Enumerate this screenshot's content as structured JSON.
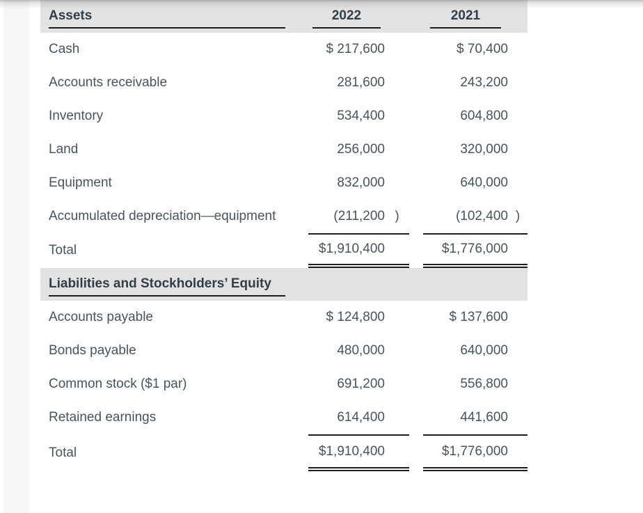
{
  "colors": {
    "band_background": "#e2e2e2",
    "text": "#46545e",
    "heading_text": "#303e4a",
    "rule": "#1c1c1c",
    "left_strip": "#f8f8f8"
  },
  "table": {
    "sections": [
      {
        "title": "Assets",
        "col1": "2022",
        "col2": "2021",
        "rows": [
          {
            "label": "Cash",
            "v1": "$ 217,600",
            "v2": "$ 70,400"
          },
          {
            "label": "Accounts receivable",
            "v1": "281,600",
            "v2": "243,200"
          },
          {
            "label": "Inventory",
            "v1": "534,400",
            "v2": "604,800"
          },
          {
            "label": "Land",
            "v1": "256,000",
            "v2": "320,000"
          },
          {
            "label": "Equipment",
            "v1": "832,000",
            "v2": "640,000"
          },
          {
            "label": "Accumulated depreciation—equipment",
            "v1": "(211,200",
            "v1_close": ")",
            "v2": "(102,400",
            "v2_close": ")"
          }
        ],
        "total": {
          "label": "Total",
          "v1": "$1,910,400",
          "v2": "$1,776,000"
        }
      },
      {
        "title": "Liabilities and Stockholders’ Equity",
        "rows": [
          {
            "label": "Accounts payable",
            "v1": "$ 124,800",
            "v2": "$ 137,600"
          },
          {
            "label": "Bonds payable",
            "v1": "480,000",
            "v2": "640,000"
          },
          {
            "label": "Common stock ($1 par)",
            "v1": "691,200",
            "v2": "556,800"
          },
          {
            "label": "Retained earnings",
            "v1": "614,400",
            "v2": "441,600"
          }
        ],
        "total": {
          "label": "Total",
          "v1": "$1,910,400",
          "v2": "$1,776,000"
        }
      }
    ]
  }
}
